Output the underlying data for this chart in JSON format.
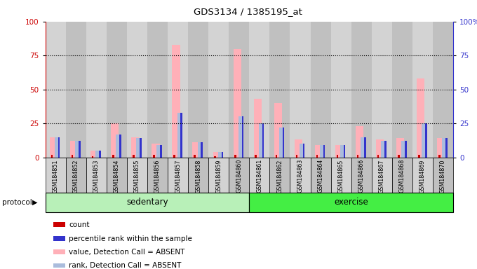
{
  "title": "GDS3134 / 1385195_at",
  "samples": [
    "GSM184851",
    "GSM184852",
    "GSM184853",
    "GSM184854",
    "GSM184855",
    "GSM184856",
    "GSM184857",
    "GSM184858",
    "GSM184859",
    "GSM184860",
    "GSM184861",
    "GSM184862",
    "GSM184863",
    "GSM184864",
    "GSM184865",
    "GSM184866",
    "GSM184867",
    "GSM184868",
    "GSM184869",
    "GSM184870"
  ],
  "absent_value": [
    15,
    12,
    5,
    25,
    15,
    10,
    83,
    11,
    4,
    80,
    43,
    40,
    13,
    9,
    9,
    23,
    13,
    14,
    58,
    14
  ],
  "absent_rank": [
    15,
    12,
    5,
    17,
    14,
    9,
    33,
    11,
    4,
    30,
    25,
    22,
    10,
    9,
    9,
    15,
    12,
    12,
    25,
    14
  ],
  "count_val": [
    2,
    2,
    1,
    2,
    2,
    2,
    2,
    2,
    1,
    2,
    2,
    2,
    2,
    2,
    2,
    2,
    2,
    2,
    2,
    2
  ],
  "pct_rank_val": [
    15,
    12,
    5,
    17,
    14,
    9,
    33,
    11,
    4,
    30,
    25,
    22,
    10,
    9,
    9,
    15,
    12,
    12,
    25,
    14
  ],
  "groups": [
    {
      "name": "sedentary",
      "count": 10,
      "color": "#b8f0b8"
    },
    {
      "name": "exercise",
      "count": 10,
      "color": "#44ee44"
    }
  ],
  "ylim": [
    0,
    100
  ],
  "yticks": [
    0,
    25,
    50,
    75,
    100
  ],
  "bar_width": 0.35,
  "bg_color": "#d3d3d3",
  "col_colors": [
    "#d3d3d3",
    "#c0c0c0"
  ],
  "pink": "#ffb0b8",
  "lightblue": "#aabcdc",
  "red": "#cc0000",
  "blue": "#3333cc",
  "legend": [
    {
      "label": "count",
      "color": "#cc0000"
    },
    {
      "label": "percentile rank within the sample",
      "color": "#3333cc"
    },
    {
      "label": "value, Detection Call = ABSENT",
      "color": "#ffb0b8"
    },
    {
      "label": "rank, Detection Call = ABSENT",
      "color": "#aabcdc"
    }
  ]
}
